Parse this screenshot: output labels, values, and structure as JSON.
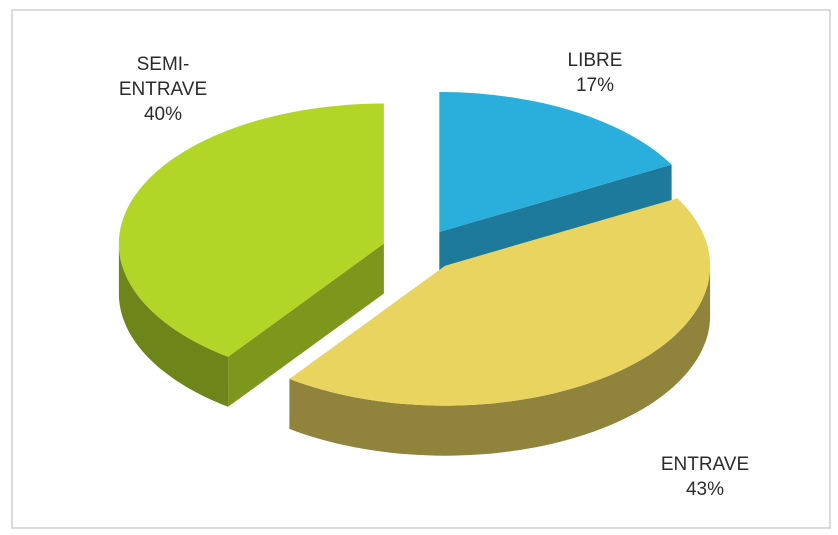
{
  "chart_data": {
    "type": "pie",
    "view": "3d-exploded",
    "categories": [
      "LIBRE",
      "ENTRAVE",
      "SEMI-ENTRAVE"
    ],
    "values": [
      17,
      43,
      40
    ],
    "value_labels": [
      "17%",
      "43%",
      "40%"
    ],
    "colors": [
      "#2aaedc",
      "#e9d460",
      "#b2d628"
    ]
  }
}
